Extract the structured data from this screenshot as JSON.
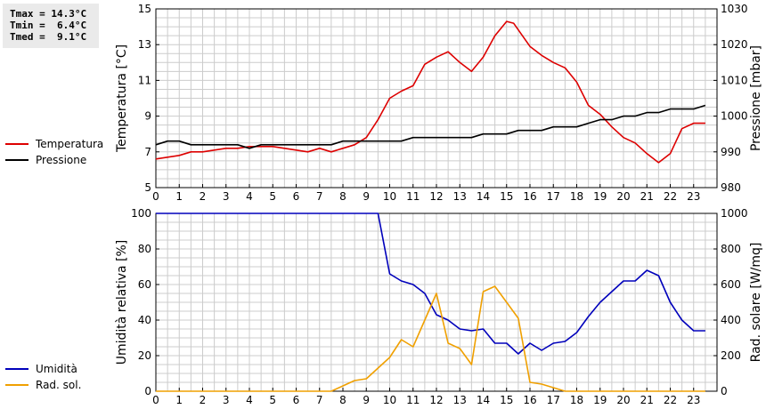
{
  "stats": {
    "tmax": "Tmax = 14.3°C",
    "tmin": "Tmin =  6.4°C",
    "tmed": "Tmed =  9.1°C"
  },
  "colors": {
    "temperature": "#dd0000",
    "pressure": "#000000",
    "humidity": "#0000bb",
    "radiation": "#f0a000",
    "grid": "#cccccc"
  },
  "chart_data": [
    {
      "type": "line",
      "x_ticks": [
        "0",
        "1",
        "2",
        "3",
        "4",
        "5",
        "6",
        "7",
        "8",
        "9",
        "10",
        "11",
        "12",
        "13",
        "14",
        "15",
        "16",
        "17",
        "18",
        "19",
        "20",
        "21",
        "22",
        "23"
      ],
      "xlim": [
        0,
        24
      ],
      "ylabel_left": "Temperatura [°C]",
      "ylabel_right": "Pressione [mbar]",
      "ylim_left": [
        5,
        15
      ],
      "yticks_left": [
        5,
        7,
        9,
        11,
        13,
        15
      ],
      "ylim_right": [
        980,
        1030
      ],
      "yticks_right": [
        980,
        990,
        1000,
        1010,
        1020,
        1030
      ],
      "grid": true,
      "series": [
        {
          "name": "Temperatura",
          "axis": "left",
          "x": [
            0,
            0.5,
            1,
            1.5,
            2,
            2.5,
            3,
            3.5,
            4,
            4.5,
            5,
            5.5,
            6,
            6.5,
            7,
            7.5,
            8,
            8.5,
            9,
            9.5,
            10,
            10.5,
            11,
            11.5,
            12,
            12.5,
            13,
            13.5,
            14,
            14.5,
            15,
            15.3,
            16,
            16.5,
            17,
            17.5,
            18,
            18.5,
            19,
            19.5,
            20,
            20.5,
            21,
            21.5,
            22,
            22.5,
            23,
            23.5
          ],
          "y": [
            6.6,
            6.7,
            6.8,
            7.0,
            7.0,
            7.1,
            7.2,
            7.2,
            7.3,
            7.3,
            7.3,
            7.2,
            7.1,
            7.0,
            7.2,
            7.0,
            7.2,
            7.4,
            7.8,
            8.8,
            10.0,
            10.4,
            10.7,
            11.9,
            12.3,
            12.6,
            12.0,
            11.5,
            12.3,
            13.5,
            14.3,
            14.2,
            12.9,
            12.4,
            12.0,
            11.7,
            10.9,
            9.6,
            9.1,
            8.4,
            7.8,
            7.5,
            6.9,
            6.4,
            6.9,
            8.3,
            8.6,
            8.6
          ]
        },
        {
          "name": "Pressione",
          "axis": "right",
          "x": [
            0,
            0.5,
            1,
            1.5,
            2,
            2.5,
            3,
            3.5,
            4,
            4.5,
            5,
            5.5,
            6,
            6.5,
            7,
            7.5,
            8,
            8.5,
            9,
            9.5,
            10,
            10.5,
            11,
            11.5,
            12,
            12.5,
            13,
            13.5,
            14,
            14.5,
            15,
            15.5,
            16,
            16.5,
            17,
            17.5,
            18,
            18.5,
            19,
            19.5,
            20,
            20.5,
            21,
            21.5,
            22,
            22.5,
            23,
            23.5
          ],
          "y": [
            992,
            993,
            993,
            992,
            992,
            992,
            992,
            992,
            991,
            992,
            992,
            992,
            992,
            992,
            992,
            992,
            993,
            993,
            993,
            993,
            993,
            993,
            994,
            994,
            994,
            994,
            994,
            994,
            995,
            995,
            995,
            996,
            996,
            996,
            997,
            997,
            997,
            998,
            999,
            999,
            1000,
            1000,
            1001,
            1001,
            1002,
            1002,
            1002,
            1003
          ]
        }
      ]
    },
    {
      "type": "line",
      "x_ticks": [
        "0",
        "1",
        "2",
        "3",
        "4",
        "5",
        "6",
        "7",
        "8",
        "9",
        "10",
        "11",
        "12",
        "13",
        "14",
        "15",
        "16",
        "17",
        "18",
        "19",
        "20",
        "21",
        "22",
        "23"
      ],
      "xlim": [
        0,
        24
      ],
      "ylabel_left": "Umidità relativa [%]",
      "ylabel_right": "Rad. solare [W/mq]",
      "ylim_left": [
        0,
        100
      ],
      "yticks_left": [
        0,
        20,
        40,
        60,
        80,
        100
      ],
      "ylim_right": [
        0,
        1000
      ],
      "yticks_right": [
        0,
        200,
        400,
        600,
        800,
        1000
      ],
      "grid": true,
      "series": [
        {
          "name": "Umidità",
          "axis": "left",
          "x": [
            0,
            1,
            2,
            3,
            4,
            5,
            6,
            7,
            8,
            9,
            9.5,
            10,
            10.5,
            11,
            11.5,
            12,
            12.5,
            13,
            13.5,
            14,
            14.5,
            15,
            15.5,
            16,
            16.5,
            17,
            17.5,
            18,
            18.5,
            19,
            19.5,
            20,
            20.5,
            21,
            21.5,
            22,
            22.5,
            23,
            23.5
          ],
          "y": [
            100,
            100,
            100,
            100,
            100,
            100,
            100,
            100,
            100,
            100,
            100,
            66,
            62,
            60,
            55,
            43,
            40,
            35,
            34,
            35,
            27,
            27,
            21,
            27,
            23,
            27,
            28,
            33,
            42,
            50,
            56,
            62,
            62,
            68,
            65,
            50,
            40,
            34,
            34
          ]
        },
        {
          "name": "Rad. sol.",
          "axis": "right",
          "x": [
            0,
            1,
            2,
            3,
            4,
            5,
            6,
            7,
            7.5,
            8,
            8.5,
            9,
            9.5,
            10,
            10.5,
            11,
            11.5,
            12,
            12.5,
            13,
            13.5,
            14,
            14.5,
            15,
            15.5,
            16,
            16.5,
            17,
            17.5,
            18,
            19,
            20,
            21,
            22,
            23,
            23.5
          ],
          "y": [
            0,
            0,
            0,
            0,
            0,
            0,
            0,
            0,
            0,
            30,
            60,
            70,
            130,
            190,
            290,
            250,
            400,
            550,
            270,
            240,
            150,
            560,
            590,
            500,
            410,
            50,
            40,
            20,
            0,
            0,
            0,
            0,
            0,
            0,
            0,
            0
          ]
        }
      ]
    }
  ]
}
